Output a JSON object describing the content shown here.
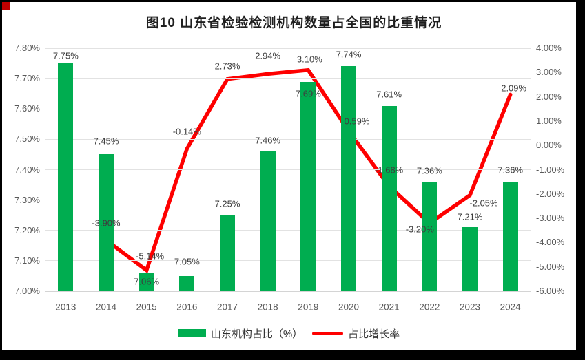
{
  "title": "图10  山东省检验检测机构数量占全国的比重情况",
  "corner_marker": {
    "color": "#c00000"
  },
  "chart_data": {
    "type": "combo bar+line",
    "title": "图10  山东省检验检测机构数量占全国的比重情况",
    "categories": [
      "2013",
      "2014",
      "2015",
      "2016",
      "2017",
      "2018",
      "2019",
      "2020",
      "2021",
      "2022",
      "2023",
      "2024"
    ],
    "series": [
      {
        "name": "山东机构占比（%）",
        "type": "bar",
        "axis": "left",
        "color": "#00ad50",
        "values": [
          7.75,
          7.45,
          7.06,
          7.05,
          7.25,
          7.46,
          7.69,
          7.74,
          7.61,
          7.36,
          7.21,
          7.36
        ],
        "labels": [
          "7.75%",
          "7.45%",
          "7.06%",
          "7.05%",
          "7.25%",
          "7.46%",
          "7.69%",
          "7.74%",
          "7.61%",
          "7.36%",
          "7.21%",
          "7.36%"
        ]
      },
      {
        "name": "占比增长率",
        "type": "line",
        "axis": "right",
        "color": "#fe0000",
        "x_categories": [
          "2014",
          "2015",
          "2016",
          "2017",
          "2018",
          "2019",
          "2020",
          "2021",
          "2022",
          "2023",
          "2024"
        ],
        "values": [
          -3.9,
          -5.14,
          -0.14,
          2.73,
          2.94,
          3.1,
          0.59,
          -1.68,
          -3.2,
          -2.05,
          2.09
        ],
        "labels": [
          "-3.90%",
          "-5.14%",
          "-0.14%",
          "2.73%",
          "2.94%",
          "3.10%",
          "0.59%",
          "-1.68%",
          "-3.20%",
          "-2.05%",
          "2.09%"
        ]
      }
    ],
    "left_axis": {
      "min": 7.0,
      "max": 7.8,
      "step": 0.1,
      "tick_labels": [
        "7.80%",
        "7.70%",
        "7.60%",
        "7.50%",
        "7.40%",
        "7.30%",
        "7.20%",
        "7.10%",
        "7.00%"
      ]
    },
    "right_axis": {
      "min": -6.0,
      "max": 4.0,
      "step": 1.0,
      "tick_labels": [
        "4.00%",
        "3.00%",
        "2.00%",
        "1.00%",
        "0.00%",
        "-1.00%",
        "-2.00%",
        "-3.00%",
        "-4.00%",
        "-5.00%",
        "-6.00%"
      ]
    },
    "grid": true,
    "legend_position": "bottom"
  },
  "legend": {
    "items": [
      {
        "label": "山东机构占比（%）",
        "swatch": "bar",
        "color": "#00ad50"
      },
      {
        "label": "占比增长率",
        "swatch": "line",
        "color": "#fe0000"
      }
    ]
  }
}
